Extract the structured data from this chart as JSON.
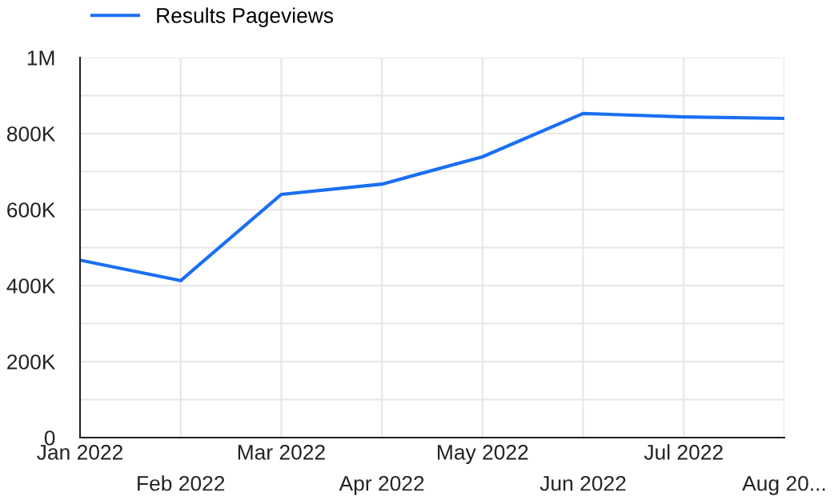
{
  "chart_data": {
    "type": "line",
    "categories": [
      "Jan 2022",
      "Feb 2022",
      "Mar 2022",
      "Apr 2022",
      "May 2022",
      "Jun 2022",
      "Jul 2022",
      "Aug 20..."
    ],
    "series": [
      {
        "name": "Results Pageviews",
        "color": "#1a6ff2",
        "values": [
          467000,
          413000,
          640000,
          667000,
          739000,
          853000,
          844000,
          840000
        ]
      }
    ],
    "ylim": [
      0,
      1000000
    ],
    "yticks": [
      {
        "value": 0,
        "label": "0"
      },
      {
        "value": 100000,
        "label": null
      },
      {
        "value": 200000,
        "label": "200K"
      },
      {
        "value": 300000,
        "label": null
      },
      {
        "value": 400000,
        "label": "400K"
      },
      {
        "value": 500000,
        "label": null
      },
      {
        "value": 600000,
        "label": "600K"
      },
      {
        "value": 700000,
        "label": null
      },
      {
        "value": 800000,
        "label": "800K"
      },
      {
        "value": 900000,
        "label": null
      },
      {
        "value": 1000000,
        "label": "1M"
      }
    ],
    "grid": true,
    "legend": "top left",
    "marker": "none",
    "line_style": "solid"
  }
}
